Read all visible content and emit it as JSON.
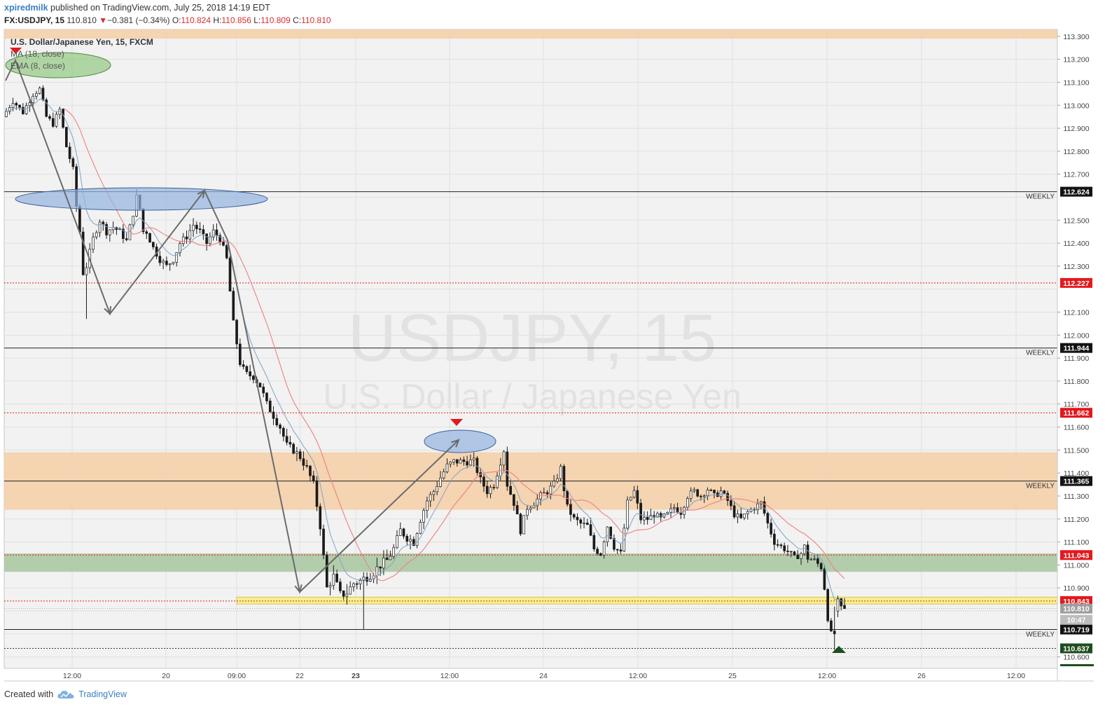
{
  "header": {
    "user": "xpiredmilk",
    "published": " published on TradingView.com, July 25, 2018 14:19 EDT",
    "symbol": "FX:USDJPY, 15",
    "last": "110.810",
    "change_arrow": "▼",
    "change": "−0.381 (−0.34%)",
    "o_label": "O:",
    "o": "110.824",
    "h_label": "H:",
    "h": "110.856",
    "l_label": "L:",
    "l": "110.809",
    "c_label": "C:",
    "c": "110.810"
  },
  "legend": {
    "main": "U.S. Dollar/Japanese Yen, 15, FXCM",
    "ma": "MA (18, close)",
    "ema": "EMA (8, close)"
  },
  "watermark": {
    "symbol": "USDJPY, 15",
    "name": "U.S. Dollar / Japanese Yen"
  },
  "footer": {
    "created_with": "Created with",
    "brand": "TradingView"
  },
  "colors": {
    "up_candle": "#ffffff",
    "down_candle": "#1a1a1a",
    "ma": "#f08080",
    "ema": "#7fa3c8",
    "orange_zone": "#f5cfa6",
    "green_zone": "#a8c7a0",
    "yellow_zone": "#f7ef8c",
    "red_label": "#e3191d",
    "black_label": "#131313",
    "green_label": "#1e4d1e",
    "gray_label": "#9e9e9e"
  },
  "chart_data": {
    "type": "candlestick",
    "ylim": [
      110.55,
      113.33
    ],
    "y_ticks": [
      110.6,
      110.7,
      110.8,
      110.9,
      111.0,
      111.1,
      111.2,
      111.3,
      111.4,
      111.5,
      111.6,
      111.7,
      111.8,
      111.9,
      112.0,
      112.1,
      112.2,
      112.3,
      112.4,
      112.5,
      112.6,
      112.7,
      112.8,
      112.9,
      113.0,
      113.1,
      113.2,
      113.3
    ],
    "x_labels": [
      "12:00",
      "20",
      "09:00",
      "22",
      "23",
      "12:00",
      "24",
      "12:00",
      "25",
      "12:00",
      "26",
      "12:00"
    ],
    "bold_x_labels": [
      "23"
    ],
    "price_path": [
      [
        0,
        112.95
      ],
      [
        3,
        113.02
      ],
      [
        6,
        112.97
      ],
      [
        9,
        113.05
      ],
      [
        11,
        113.07
      ],
      [
        13,
        112.95
      ],
      [
        15,
        112.92
      ],
      [
        17,
        112.98
      ],
      [
        19,
        112.82
      ],
      [
        21,
        112.72
      ],
      [
        22,
        112.56
      ],
      [
        23,
        112.45
      ],
      [
        24,
        112.27
      ],
      [
        25,
        112.3
      ],
      [
        27,
        112.42
      ],
      [
        29,
        112.5
      ],
      [
        31,
        112.45
      ],
      [
        33,
        112.47
      ],
      [
        35,
        112.45
      ],
      [
        37,
        112.41
      ],
      [
        39,
        112.53
      ],
      [
        40,
        112.6
      ],
      [
        41,
        112.55
      ],
      [
        42,
        112.45
      ],
      [
        43,
        112.45
      ],
      [
        45,
        112.38
      ],
      [
        47,
        112.33
      ],
      [
        49,
        112.3
      ],
      [
        51,
        112.33
      ],
      [
        53,
        112.4
      ],
      [
        55,
        112.43
      ],
      [
        57,
        112.48
      ],
      [
        59,
        112.45
      ],
      [
        61,
        112.4
      ],
      [
        63,
        112.45
      ],
      [
        65,
        112.42
      ],
      [
        67,
        112.33
      ],
      [
        69,
        112.05
      ],
      [
        71,
        111.88
      ],
      [
        72,
        111.85
      ],
      [
        73,
        111.83
      ],
      [
        75,
        111.82
      ],
      [
        77,
        111.78
      ],
      [
        79,
        111.7
      ],
      [
        81,
        111.65
      ],
      [
        83,
        111.6
      ],
      [
        85,
        111.52
      ],
      [
        87,
        111.5
      ],
      [
        89,
        111.47
      ],
      [
        91,
        111.42
      ],
      [
        93,
        111.35
      ],
      [
        95,
        111.17
      ],
      [
        97,
        110.9
      ],
      [
        99,
        110.95
      ],
      [
        101,
        110.87
      ],
      [
        103,
        110.88
      ],
      [
        105,
        110.92
      ],
      [
        107,
        110.93
      ],
      [
        109,
        110.95
      ],
      [
        111,
        110.97
      ],
      [
        113,
        111.0
      ],
      [
        115,
        111.02
      ],
      [
        117,
        111.07
      ],
      [
        119,
        111.15
      ],
      [
        121,
        111.12
      ],
      [
        123,
        111.1
      ],
      [
        125,
        111.2
      ],
      [
        127,
        111.28
      ],
      [
        129,
        111.32
      ],
      [
        131,
        111.38
      ],
      [
        133,
        111.43
      ],
      [
        135,
        111.45
      ],
      [
        137,
        111.45
      ],
      [
        139,
        111.45
      ],
      [
        141,
        111.45
      ],
      [
        143,
        111.37
      ],
      [
        145,
        111.32
      ],
      [
        147,
        111.35
      ],
      [
        149,
        111.45
      ],
      [
        150,
        111.5
      ],
      [
        151,
        111.35
      ],
      [
        153,
        111.27
      ],
      [
        155,
        111.15
      ],
      [
        157,
        111.25
      ],
      [
        159,
        111.27
      ],
      [
        161,
        111.3
      ],
      [
        163,
        111.32
      ],
      [
        165,
        111.35
      ],
      [
        167,
        111.42
      ],
      [
        168,
        111.33
      ],
      [
        169,
        111.25
      ],
      [
        171,
        111.2
      ],
      [
        173,
        111.18
      ],
      [
        175,
        111.17
      ],
      [
        177,
        111.07
      ],
      [
        179,
        111.05
      ],
      [
        181,
        111.17
      ],
      [
        183,
        111.08
      ],
      [
        185,
        111.05
      ],
      [
        187,
        111.27
      ],
      [
        189,
        111.32
      ],
      [
        191,
        111.2
      ],
      [
        193,
        111.2
      ],
      [
        195,
        111.22
      ],
      [
        197,
        111.2
      ],
      [
        199,
        111.22
      ],
      [
        201,
        111.25
      ],
      [
        203,
        111.23
      ],
      [
        205,
        111.3
      ],
      [
        207,
        111.32
      ],
      [
        209,
        111.3
      ],
      [
        211,
        111.33
      ],
      [
        213,
        111.3
      ],
      [
        215,
        111.32
      ],
      [
        217,
        111.28
      ],
      [
        219,
        111.22
      ],
      [
        221,
        111.2
      ],
      [
        223,
        111.23
      ],
      [
        225,
        111.25
      ],
      [
        227,
        111.27
      ],
      [
        229,
        111.18
      ],
      [
        231,
        111.1
      ],
      [
        233,
        111.08
      ],
      [
        235,
        111.06
      ],
      [
        237,
        111.03
      ],
      [
        239,
        111.05
      ],
      [
        240,
        111.08
      ],
      [
        241,
        111.03
      ],
      [
        243,
        111.02
      ],
      [
        245,
        110.99
      ],
      [
        246,
        110.9
      ],
      [
        247,
        110.77
      ],
      [
        248,
        110.7
      ],
      [
        249,
        110.8
      ],
      [
        250,
        110.84
      ],
      [
        251,
        110.81
      ]
    ],
    "volatility": [
      [
        0,
        0.03
      ],
      [
        60,
        0.035
      ],
      [
        95,
        0.04
      ],
      [
        100,
        0.05
      ],
      [
        140,
        0.035
      ],
      [
        250,
        0.03
      ]
    ],
    "n_bars": 252,
    "h_levels": [
      {
        "price": 112.624,
        "style": "black",
        "label": "112.624",
        "tag": "WEEKLY"
      },
      {
        "price": 111.944,
        "style": "black",
        "label": "111.944",
        "tag": "WEEKLY"
      },
      {
        "price": 111.365,
        "style": "black",
        "label": "111.365",
        "tag": "WEEKLY"
      },
      {
        "price": 110.719,
        "style": "black",
        "label": "110.719",
        "tag": "WEEKLY"
      },
      {
        "price": 112.227,
        "style": "red-dot",
        "label": "112.227"
      },
      {
        "price": 111.662,
        "style": "red-dot",
        "label": "111.662"
      },
      {
        "price": 111.043,
        "style": "red-dot",
        "label": "111.043"
      },
      {
        "price": 110.843,
        "style": "red-dot",
        "label": "110.843"
      },
      {
        "price": 110.637,
        "style": "green-dot",
        "label": "110.637"
      }
    ],
    "last_price_label": "110.810",
    "countdown_label": "10:47",
    "zones": [
      {
        "from": 113.29,
        "to": 113.33,
        "color": "orange"
      },
      {
        "from": 111.24,
        "to": 111.49,
        "color": "orange"
      },
      {
        "from": 110.97,
        "to": 111.05,
        "color": "green"
      },
      {
        "from": 110.83,
        "to": 110.86,
        "color": "yellow"
      }
    ]
  }
}
